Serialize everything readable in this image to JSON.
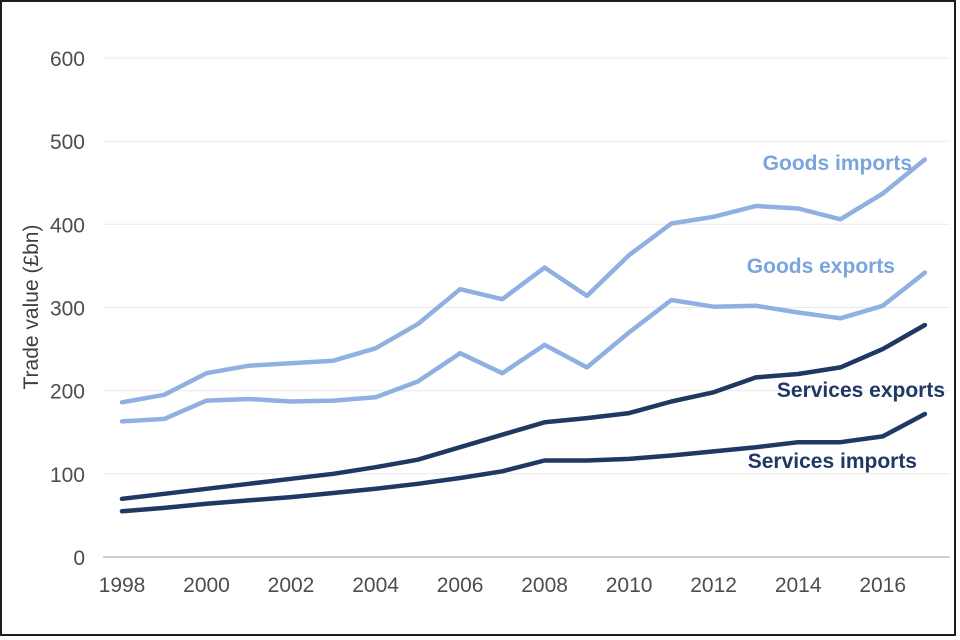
{
  "chart_data": {
    "type": "line",
    "title": "",
    "xlabel": "",
    "ylabel": "Trade value (£bn)",
    "ylim": [
      0,
      600
    ],
    "yticks": [
      0,
      100,
      200,
      300,
      400,
      500,
      600
    ],
    "x": [
      1998,
      1999,
      2000,
      2001,
      2002,
      2003,
      2004,
      2005,
      2006,
      2007,
      2008,
      2009,
      2010,
      2011,
      2012,
      2013,
      2014,
      2015,
      2016,
      2017
    ],
    "x_tick_labels": [
      "1998",
      "2000",
      "2002",
      "2004",
      "2006",
      "2008",
      "2010",
      "2012",
      "2014",
      "2016"
    ],
    "grid": "horizontal",
    "legend_position": "direct-line-labels",
    "series": [
      {
        "name": "Goods imports",
        "color": "#8fb0e0",
        "label_color": "#7aa5dc",
        "values": [
          186,
          195,
          221,
          230,
          233,
          236,
          251,
          280,
          322,
          310,
          348,
          314,
          363,
          401,
          409,
          422,
          419,
          406,
          437,
          478
        ]
      },
      {
        "name": "Goods exports",
        "color": "#8fb0e0",
        "label_color": "#7aa5dc",
        "values": [
          163,
          166,
          188,
          190,
          187,
          188,
          192,
          211,
          245,
          221,
          255,
          228,
          270,
          309,
          301,
          302,
          294,
          287,
          302,
          342
        ]
      },
      {
        "name": "Services exports",
        "color": "#1f3864",
        "label_color": "#1f3864",
        "values": [
          70,
          76,
          82,
          88,
          94,
          100,
          108,
          117,
          132,
          147,
          162,
          167,
          173,
          187,
          198,
          216,
          220,
          228,
          250,
          279
        ]
      },
      {
        "name": "Services imports",
        "color": "#1f3864",
        "label_color": "#1f3864",
        "values": [
          55,
          59,
          64,
          68,
          72,
          77,
          82,
          88,
          95,
          103,
          116,
          116,
          118,
          122,
          127,
          132,
          138,
          138,
          145,
          172
        ]
      }
    ]
  }
}
